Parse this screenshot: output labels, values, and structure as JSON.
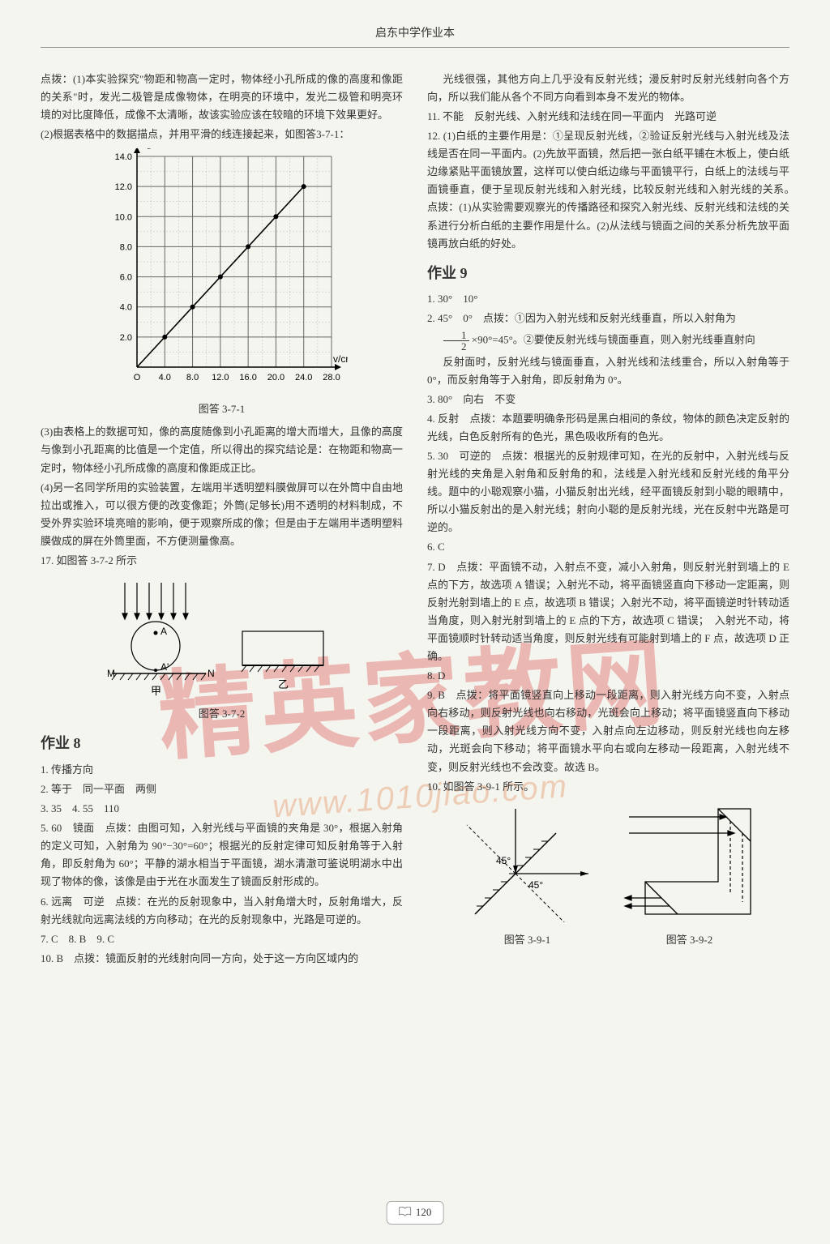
{
  "header": {
    "title": "启东中学作业本"
  },
  "page_number": "120",
  "watermark": {
    "main": "精英家教网",
    "url": "www.1010jiao.com"
  },
  "left": {
    "p1": "点拨：(1)本实验探究\"物距和物高一定时，物体经小孔所成的像的高度和像距的关系\"时，发光二极管是成像物体，在明亮的环境中，发光二极管和明亮环境的对比度降低，成像不太清晰，故该实验应该在较暗的环境下效果更好。",
    "p2": "(2)根据表格中的数据描点，并用平滑的线连接起来，如图答3-7-1：",
    "chart371": {
      "type": "line",
      "x_label": "v/cm",
      "y_label": "h₂/cm",
      "x_ticks": [
        0,
        4,
        8,
        12,
        16,
        20,
        24,
        28
      ],
      "x_tick_labels": [
        "O",
        "4.0",
        "8.0",
        "12.0",
        "16.0",
        "20.0",
        "24.0",
        "28.0"
      ],
      "y_ticks": [
        0,
        2,
        4,
        6,
        8,
        10,
        12,
        14
      ],
      "y_tick_labels": [
        "",
        "2.0",
        "4.0",
        "6.0",
        "8.0",
        "10.0",
        "12.0",
        "14.0"
      ],
      "points": [
        [
          4,
          2
        ],
        [
          8,
          4
        ],
        [
          12,
          6
        ],
        [
          16,
          8
        ],
        [
          20,
          10
        ],
        [
          24,
          12
        ]
      ],
      "line_color": "#000000",
      "marker_color": "#000000",
      "grid_major_color": "#666666",
      "grid_minor_color": "#bbbbbb",
      "background_color": "#f5f5f0",
      "caption": "图答 3-7-1"
    },
    "p3": "(3)由表格上的数据可知，像的高度随像到小孔距离的增大而增大，且像的高度与像到小孔距离的比值是一个定值，所以得出的探究结论是：在物距和物高一定时，物体经小孔所成像的高度和像距成正比。",
    "p4": "(4)另一名同学所用的实验装置，左端用半透明塑料膜做屏可以在外筒中自由地拉出或推入，可以很方便的改变像距；外筒(足够长)用不透明的材料制成，不受外界实验环境亮暗的影响，便于观察所成的像；但是由于左端用半透明塑料膜做成的屏在外筒里面，不方便测量像高。",
    "p5": "17. 如图答 3-7-2 所示",
    "fig372": {
      "caption": "图答 3-7-2",
      "labels": {
        "M": "M",
        "N": "N",
        "A": "A",
        "Aprime": "A'",
        "left": "甲",
        "right": "乙"
      }
    },
    "hw8_title": "作业 8",
    "hw8": {
      "a1": "1. 传播方向",
      "a2": "2. 等于　同一平面　两侧",
      "a3": "3. 35　4. 55　110",
      "a5": "5. 60　镜面　点拨：由图可知，入射光线与平面镜的夹角是 30°，根据入射角的定义可知，入射角为 90°−30°=60°；根据光的反射定律可知反射角等于入射角，即反射角为 60°；平静的湖水相当于平面镜，湖水清澈可鉴说明湖水中出现了物体的像，该像是由于光在水面发生了镜面反射形成的。",
      "a6": "6. 远离　可逆　点拨：在光的反射现象中，当入射角增大时，反射角增大，反射光线就向远离法线的方向移动；在光的反射现象中，光路是可逆的。",
      "a7": "7. C　8. B　9. C",
      "a10": "10. B　点拨：镜面反射的光线射向同一方向，处于这一方向区域内的"
    }
  },
  "right": {
    "p_cont": "光线很强，其他方向上几乎没有反射光线；漫反射时反射光线射向各个方向，所以我们能从各个不同方向看到本身不发光的物体。",
    "a11": "11. 不能　反射光线、入射光线和法线在同一平面内　光路可逆",
    "a12": "12. (1)白纸的主要作用是：①呈现反射光线，②验证反射光线与入射光线及法线是否在同一平面内。(2)先放平面镜，然后把一张白纸平铺在木板上，使白纸边缘紧贴平面镜放置，这样可以使白纸边缘与平面镜平行，白纸上的法线与平面镜垂直，便于呈现反射光线和入射光线，比较反射光线和入射光线的关系。　点拨：(1)从实验需要观察光的传播路径和探究入射光线、反射光线和法线的关系进行分析白纸的主要作用是什么。(2)从法线与镜面之间的关系分析先放平面镜再放白纸的好处。",
    "hw9_title": "作业 9",
    "hw9": {
      "a1": "1. 30°　10°",
      "a2a": "2. 45°　0°　点拨：①因为入射光线和反射光线垂直，所以入射角为",
      "a2b": "×90°=45°。②要使反射光线与镜面垂直，则入射光线垂直射向",
      "frac": {
        "num": "1",
        "den": "2"
      },
      "a2c": "反射面时，反射光线与镜面垂直，入射光线和法线重合，所以入射角等于 0°，而反射角等于入射角，即反射角为 0°。",
      "a3": "3. 80°　向右　不变",
      "a4": "4. 反射　点拨：本题要明确条形码是黑白相间的条纹，物体的颜色决定反射的光线，白色反射所有的色光，黑色吸收所有的色光。",
      "a5": "5. 30　可逆的　点拨：根据光的反射规律可知，在光的反射中，入射光线与反射光线的夹角是入射角和反射角的和，法线是入射光线和反射光线的角平分线。题中的小聪观察小猫，小猫反射出光线，经平面镜反射到小聪的眼睛中，所以小猫反射出的是入射光线；射向小聪的是反射光线，光在反射中光路是可逆的。",
      "a6": "6. C",
      "a7": "7. D　点拨：平面镜不动，入射点不变，减小入射角，则反射光射到墙上的 E 点的下方，故选项 A 错误；入射光不动，将平面镜竖直向下移动一定距离，则反射光射到墙上的 E 点，故选项 B 错误；入射光不动，将平面镜逆时针转动适当角度，则入射光射到墙上的 E 点的下方，故选项 C 错误；　入射光不动，将平面镜顺时针转动适当角度，则反射光线有可能射到墙上的 F 点，故选项 D 正确。",
      "a8": "8. D",
      "a9": "9. B　点拨：将平面镜竖直向上移动一段距离，则入射光线方向不变，入射点向右移动，则反射光线也向右移动，光斑会向上移动；将平面镜竖直向下移动一段距离，则入射光线方向不变，入射点向左边移动，则反射光线也向左移动，光斑会向下移动；将平面镜水平向右或向左移动一段距离，入射光线不变，则反射光线也不会改变。故选 B。",
      "a10": "10. 如图答 3-9-1 所示。",
      "fig391": {
        "caption": "图答 3-9-1",
        "angle": "45°"
      },
      "fig392": {
        "caption": "图答 3-9-2"
      }
    }
  }
}
